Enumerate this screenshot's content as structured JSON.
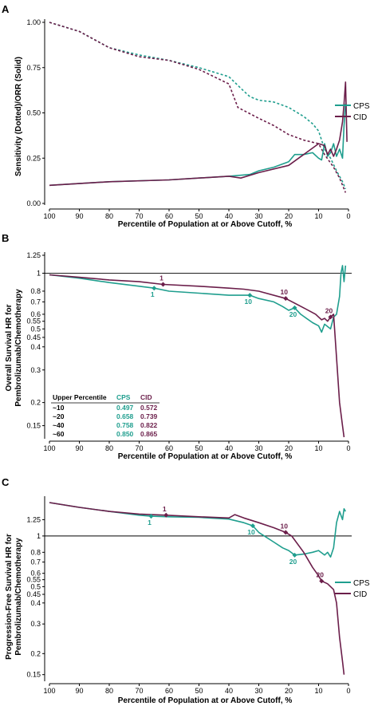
{
  "colors": {
    "cps": "#1f9e8e",
    "cid": "#6b1e4a",
    "axis": "#000000"
  },
  "chart_data": [
    {
      "panel": "A",
      "type": "line",
      "xlabel": "Percentile of Population at or Above Cutoff, %",
      "ylabel": "Sensitivity (Dotted)/ORR (Solid)",
      "xlim": [
        100,
        0
      ],
      "ylim": [
        0,
        1
      ],
      "xticks": [
        "100",
        "90",
        "80",
        "70",
        "60",
        "50",
        "40",
        "30",
        "20",
        "10",
        "0"
      ],
      "yticks": [
        "0.00",
        "0.25",
        "0.50",
        "0.75",
        "1.00"
      ],
      "legend": [
        "CPS",
        "CID"
      ],
      "series": [
        {
          "name": "CPS",
          "style": "dotted",
          "color": "cps",
          "points": [
            [
              100,
              1.0
            ],
            [
              90,
              0.95
            ],
            [
              80,
              0.86
            ],
            [
              70,
              0.82
            ],
            [
              60,
              0.79
            ],
            [
              50,
              0.75
            ],
            [
              40,
              0.7
            ],
            [
              35,
              0.62
            ],
            [
              33,
              0.59
            ],
            [
              30,
              0.57
            ],
            [
              25,
              0.56
            ],
            [
              20,
              0.53
            ],
            [
              15,
              0.48
            ],
            [
              12,
              0.44
            ],
            [
              10,
              0.4
            ],
            [
              8,
              0.3
            ],
            [
              6,
              0.25
            ],
            [
              4,
              0.18
            ],
            [
              2,
              0.12
            ],
            [
              1,
              0.08
            ]
          ]
        },
        {
          "name": "CID",
          "style": "dotted",
          "color": "cid",
          "points": [
            [
              100,
              1.0
            ],
            [
              90,
              0.95
            ],
            [
              80,
              0.86
            ],
            [
              70,
              0.81
            ],
            [
              60,
              0.79
            ],
            [
              50,
              0.74
            ],
            [
              40,
              0.66
            ],
            [
              37,
              0.53
            ],
            [
              30,
              0.47
            ],
            [
              25,
              0.43
            ],
            [
              20,
              0.38
            ],
            [
              15,
              0.35
            ],
            [
              10,
              0.33
            ],
            [
              8,
              0.27
            ],
            [
              5,
              0.2
            ],
            [
              3,
              0.14
            ],
            [
              1,
              0.06
            ]
          ]
        },
        {
          "name": "CPS",
          "style": "solid",
          "color": "cps",
          "points": [
            [
              100,
              0.1
            ],
            [
              80,
              0.12
            ],
            [
              60,
              0.13
            ],
            [
              40,
              0.15
            ],
            [
              33,
              0.16
            ],
            [
              30,
              0.18
            ],
            [
              25,
              0.2
            ],
            [
              20,
              0.23
            ],
            [
              18,
              0.27
            ],
            [
              15,
              0.27
            ],
            [
              12,
              0.28
            ],
            [
              10,
              0.25
            ],
            [
              9,
              0.24
            ],
            [
              8,
              0.33
            ],
            [
              7,
              0.26
            ],
            [
              6,
              0.28
            ],
            [
              5,
              0.33
            ],
            [
              4,
              0.26
            ],
            [
              3,
              0.3
            ],
            [
              2,
              0.25
            ],
            [
              1.5,
              0.43
            ],
            [
              1,
              0.55
            ]
          ]
        },
        {
          "name": "CID",
          "style": "solid",
          "color": "cid",
          "points": [
            [
              100,
              0.1
            ],
            [
              80,
              0.12
            ],
            [
              60,
              0.13
            ],
            [
              40,
              0.15
            ],
            [
              36,
              0.14
            ],
            [
              30,
              0.17
            ],
            [
              20,
              0.21
            ],
            [
              15,
              0.27
            ],
            [
              10,
              0.33
            ],
            [
              8,
              0.32
            ],
            [
              7,
              0.27
            ],
            [
              6,
              0.3
            ],
            [
              5,
              0.26
            ],
            [
              4,
              0.3
            ],
            [
              3,
              0.35
            ],
            [
              2,
              0.45
            ],
            [
              1.5,
              0.55
            ],
            [
              1,
              0.67
            ],
            [
              0.5,
              0.34
            ]
          ]
        }
      ]
    },
    {
      "panel": "B",
      "type": "line",
      "xlabel": "Percentile of Population at or Above Cutoff, %",
      "ylabel_lines": [
        "Overall Survival HR for",
        "Pembrolizumab/Chemotherapy"
      ],
      "yscale": "log",
      "xlim": [
        100,
        0
      ],
      "ylim": [
        0.13,
        1.25
      ],
      "xticks": [
        "100",
        "90",
        "80",
        "70",
        "60",
        "50",
        "40",
        "30",
        "20",
        "10",
        "0"
      ],
      "yticks": [
        0.15,
        0.2,
        0.3,
        0.4,
        0.45,
        0.5,
        0.55,
        0.6,
        0.7,
        0.8,
        1,
        1.25
      ],
      "ytick_labels": [
        "0.15",
        "0.2",
        "0.3",
        "0.4",
        "0.45",
        "0.5",
        "0.55",
        "0.6",
        "0.7",
        "0.8",
        "1",
        "1.25"
      ],
      "reference_line": 1,
      "series": [
        {
          "name": "CPS",
          "color": "cps",
          "points": [
            [
              100,
              0.98
            ],
            [
              90,
              0.94
            ],
            [
              80,
              0.89
            ],
            [
              70,
              0.85
            ],
            [
              65,
              0.83
            ],
            [
              60,
              0.8
            ],
            [
              50,
              0.78
            ],
            [
              40,
              0.76
            ],
            [
              33,
              0.76
            ],
            [
              30,
              0.73
            ],
            [
              25,
              0.7
            ],
            [
              22,
              0.66
            ],
            [
              20,
              0.63
            ],
            [
              18,
              0.65
            ],
            [
              16,
              0.6
            ],
            [
              12,
              0.54
            ],
            [
              10,
              0.52
            ],
            [
              9,
              0.48
            ],
            [
              8,
              0.53
            ],
            [
              6,
              0.5
            ],
            [
              5,
              0.58
            ],
            [
              4,
              0.6
            ],
            [
              3,
              0.75
            ],
            [
              2.5,
              1.0
            ],
            [
              2,
              1.1
            ],
            [
              1.5,
              0.9
            ],
            [
              1,
              1.1
            ]
          ]
        },
        {
          "name": "CID",
          "color": "cid",
          "points": [
            [
              100,
              0.98
            ],
            [
              90,
              0.95
            ],
            [
              80,
              0.92
            ],
            [
              70,
              0.9
            ],
            [
              62,
              0.87
            ],
            [
              50,
              0.85
            ],
            [
              40,
              0.83
            ],
            [
              35,
              0.82
            ],
            [
              30,
              0.8
            ],
            [
              21,
              0.73
            ],
            [
              15,
              0.65
            ],
            [
              11,
              0.6
            ],
            [
              10,
              0.58
            ],
            [
              9,
              0.56
            ],
            [
              8,
              0.57
            ],
            [
              7,
              0.55
            ],
            [
              6,
              0.58
            ],
            [
              5,
              0.6
            ],
            [
              4,
              0.35
            ],
            [
              3,
              0.2
            ],
            [
              2,
              0.15
            ],
            [
              1.5,
              0.13
            ]
          ]
        }
      ],
      "annotations": [
        {
          "text": "1",
          "series": "CPS",
          "x": 65,
          "y": 0.83
        },
        {
          "text": "10",
          "series": "CPS",
          "x": 33,
          "y": 0.76
        },
        {
          "text": "20",
          "series": "CPS",
          "x": 18,
          "y": 0.65
        },
        {
          "text": "1",
          "series": "CID",
          "x": 62,
          "y": 0.87
        },
        {
          "text": "10",
          "series": "CID",
          "x": 21,
          "y": 0.73
        },
        {
          "text": "20",
          "series": "CID",
          "x": 6,
          "y": 0.58
        }
      ],
      "table": {
        "headers": [
          "Upper Percentile",
          "CPS",
          "CID"
        ],
        "rows": [
          [
            "~10",
            "0.497",
            "0.572"
          ],
          [
            "~20",
            "0.658",
            "0.739"
          ],
          [
            "~40",
            "0.758",
            "0.822"
          ],
          [
            "~60",
            "0.850",
            "0.865"
          ]
        ]
      }
    },
    {
      "panel": "C",
      "type": "line",
      "xlabel": "Percentile of Population at or Above Cutoff, %",
      "ylabel_lines": [
        "Progression-Free Survival HR for",
        "Pembrolizumab/Chemotherapy"
      ],
      "yscale": "log",
      "xlim": [
        100,
        0
      ],
      "ylim": [
        0.14,
        1.65
      ],
      "xticks": [
        "100",
        "90",
        "80",
        "70",
        "60",
        "50",
        "40",
        "30",
        "20",
        "10",
        "0"
      ],
      "yticks": [
        0.15,
        0.2,
        0.3,
        0.4,
        0.45,
        0.5,
        0.55,
        0.6,
        0.7,
        0.8,
        1,
        1.25
      ],
      "ytick_labels": [
        "0.15",
        "0.2",
        "0.3",
        "0.4",
        "0.45",
        "0.5",
        "0.55",
        "0.6",
        "0.7",
        "0.8",
        "1",
        "1.25"
      ],
      "reference_line": 1,
      "legend": [
        "CPS",
        "CID"
      ],
      "series": [
        {
          "name": "CPS",
          "color": "cps",
          "points": [
            [
              100,
              1.58
            ],
            [
              90,
              1.48
            ],
            [
              80,
              1.4
            ],
            [
              70,
              1.33
            ],
            [
              66,
              1.31
            ],
            [
              60,
              1.3
            ],
            [
              50,
              1.29
            ],
            [
              40,
              1.26
            ],
            [
              35,
              1.2
            ],
            [
              32,
              1.15
            ],
            [
              30,
              1.05
            ],
            [
              25,
              0.92
            ],
            [
              22,
              0.85
            ],
            [
              20,
              0.82
            ],
            [
              18,
              0.77
            ],
            [
              15,
              0.78
            ],
            [
              12,
              0.8
            ],
            [
              10,
              0.82
            ],
            [
              8,
              0.77
            ],
            [
              7,
              0.8
            ],
            [
              6,
              0.75
            ],
            [
              5,
              0.85
            ],
            [
              4,
              1.2
            ],
            [
              3,
              1.4
            ],
            [
              2,
              1.25
            ],
            [
              1.5,
              1.45
            ],
            [
              1,
              1.4
            ]
          ]
        },
        {
          "name": "CID",
          "color": "cid",
          "points": [
            [
              100,
              1.58
            ],
            [
              90,
              1.48
            ],
            [
              80,
              1.4
            ],
            [
              70,
              1.35
            ],
            [
              61,
              1.33
            ],
            [
              50,
              1.3
            ],
            [
              40,
              1.28
            ],
            [
              38,
              1.34
            ],
            [
              35,
              1.28
            ],
            [
              30,
              1.2
            ],
            [
              25,
              1.12
            ],
            [
              21,
              1.05
            ],
            [
              19,
              1.0
            ],
            [
              15,
              0.8
            ],
            [
              12,
              0.65
            ],
            [
              10,
              0.58
            ],
            [
              9,
              0.54
            ],
            [
              7,
              0.52
            ],
            [
              5,
              0.48
            ],
            [
              4,
              0.4
            ],
            [
              3,
              0.25
            ],
            [
              2,
              0.18
            ],
            [
              1.5,
              0.15
            ]
          ]
        }
      ],
      "annotations": [
        {
          "text": "1",
          "series": "CPS",
          "x": 66,
          "y": 1.31
        },
        {
          "text": "10",
          "series": "CPS",
          "x": 32,
          "y": 1.15
        },
        {
          "text": "20",
          "series": "CPS",
          "x": 18,
          "y": 0.77
        },
        {
          "text": "1",
          "series": "CID",
          "x": 61,
          "y": 1.33
        },
        {
          "text": "10",
          "series": "CID",
          "x": 21,
          "y": 1.05
        },
        {
          "text": "20",
          "series": "CID",
          "x": 9,
          "y": 0.54
        }
      ]
    }
  ]
}
